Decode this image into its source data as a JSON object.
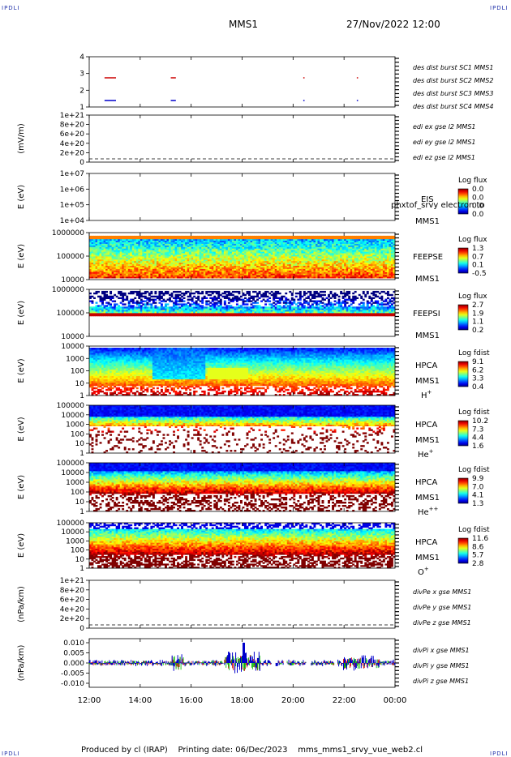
{
  "header": {
    "corner_label": "IPDLI",
    "spacecraft": "MMS1",
    "date": "27/Nov/2022 12:00"
  },
  "footer": {
    "produced_by": "Produced by cl (IRAP)",
    "printing_date": "Printing date: 06/Dec/2023",
    "script_name": "mms_mms1_srvy_vue_web2.cl"
  },
  "chart_data": {
    "type": "multi-panel",
    "x_axis": {
      "ticks": [
        "12:00",
        "14:00",
        "16:00",
        "18:00",
        "20:00",
        "22:00",
        "00:00"
      ],
      "range": [
        "12:00",
        "00:00"
      ]
    },
    "panels": [
      {
        "id": "burst",
        "type": "timeline",
        "ylabel": "",
        "yticks": [
          "1",
          "2",
          "3",
          "4"
        ],
        "legend": [
          {
            "text": "des dist burst SC1 MMS1",
            "color": "#0000cc"
          },
          {
            "text": "des dist burst SC2 MMS2",
            "color": "#cc00cc"
          },
          {
            "text": "des dist burst SC3 MMS3",
            "color": "#cc0000"
          },
          {
            "text": "des dist burst SC4 MMS4",
            "color": "#00bb00"
          }
        ],
        "segments": [
          {
            "sc": 3,
            "t0": 0.6,
            "t1": 1.05,
            "color": "#cc0000"
          },
          {
            "sc": 3,
            "t0": 3.2,
            "t1": 3.4,
            "color": "#cc0000"
          },
          {
            "sc": 3,
            "t0": 8.4,
            "t1": 8.45,
            "color": "#cc0000"
          },
          {
            "sc": 3,
            "t0": 10.5,
            "t1": 10.55,
            "color": "#cc0000"
          },
          {
            "sc": 1,
            "t0": 0.6,
            "t1": 1.05,
            "color": "#0000cc"
          },
          {
            "sc": 1,
            "t0": 3.2,
            "t1": 3.4,
            "color": "#0000cc"
          },
          {
            "sc": 1,
            "t0": 8.4,
            "t1": 8.45,
            "color": "#0000cc"
          },
          {
            "sc": 1,
            "t0": 10.5,
            "t1": 10.55,
            "color": "#0000cc"
          }
        ]
      },
      {
        "id": "edi",
        "type": "line",
        "ylabel": "(mV/m)",
        "yticks": [
          "0",
          "2e+20",
          "4e+20",
          "6e+20",
          "8e+20",
          "1e+21"
        ],
        "legend": [
          {
            "text": "edi ex gse l2 MMS1",
            "color": "#cc0000"
          },
          {
            "text": "edi ey gse l2 MMS1",
            "color": "#00bb00"
          },
          {
            "text": "edi ez gse l2 MMS1",
            "color": "#0000cc"
          }
        ]
      },
      {
        "id": "eis",
        "type": "spectrogram",
        "ylabel": "E (eV)",
        "yticks": [
          "1e+04",
          "1e+05",
          "1e+06",
          "1e+07"
        ],
        "instrument": "EIS",
        "instrument_overlay": "phxtof_srvy electron to",
        "craft": "MMS1",
        "cbar_title": "Log flux",
        "cbar_ticks": [
          "0.0",
          "0.0",
          "0.0",
          "0.0"
        ]
      },
      {
        "id": "feepse",
        "type": "spectrogram",
        "ylabel": "E (eV)",
        "yticks": [
          "10000",
          "100000",
          "1000000"
        ],
        "instrument": "FEEPSE",
        "craft": "MMS1",
        "cbar_title": "Log flux",
        "cbar_ticks": [
          "1.3",
          "0.7",
          "0.1",
          "-0.5"
        ]
      },
      {
        "id": "feepsi",
        "type": "spectrogram",
        "ylabel": "E (eV)",
        "yticks": [
          "10000",
          "100000",
          "1000000"
        ],
        "instrument": "FEEPSI",
        "craft": "MMS1",
        "cbar_title": "Log flux",
        "cbar_ticks": [
          "2.7",
          "1.9",
          "1.1",
          "0.2"
        ]
      },
      {
        "id": "hpca_h",
        "type": "spectrogram",
        "ylabel": "E (eV)",
        "yticks": [
          "1",
          "10",
          "100",
          "1000",
          "10000"
        ],
        "instrument": "HPCA",
        "craft": "MMS1",
        "species": "H",
        "charge": "+",
        "cbar_title": "Log fdist",
        "cbar_ticks": [
          "9.1",
          "6.2",
          "3.3",
          "0.4"
        ]
      },
      {
        "id": "hpca_he1",
        "type": "spectrogram",
        "ylabel": "E (eV)",
        "yticks": [
          "1",
          "10",
          "100",
          "1000",
          "10000",
          "100000"
        ],
        "instrument": "HPCA",
        "craft": "MMS1",
        "species": "He",
        "charge": "+",
        "cbar_title": "Log fdist",
        "cbar_ticks": [
          "10.2",
          "7.3",
          "4.4",
          "1.6"
        ]
      },
      {
        "id": "hpca_he2",
        "type": "spectrogram",
        "ylabel": "E (eV)",
        "yticks": [
          "1",
          "10",
          "100",
          "1000",
          "10000",
          "100000"
        ],
        "instrument": "HPCA",
        "craft": "MMS1",
        "species": "He",
        "charge": "++",
        "cbar_title": "Log fdist",
        "cbar_ticks": [
          "9.9",
          "7.0",
          "4.1",
          "1.3"
        ]
      },
      {
        "id": "hpca_o",
        "type": "spectrogram",
        "ylabel": "E (eV)",
        "yticks": [
          "1",
          "10",
          "100",
          "1000",
          "10000",
          "100000"
        ],
        "instrument": "HPCA",
        "craft": "MMS1",
        "species": "O",
        "charge": "+",
        "cbar_title": "Log fdist",
        "cbar_ticks": [
          "11.6",
          "8.6",
          "5.7",
          "2.8"
        ]
      },
      {
        "id": "divpe",
        "type": "line",
        "ylabel": "(nPa/km)",
        "yticks": [
          "0",
          "2e+20",
          "4e+20",
          "6e+20",
          "8e+20",
          "1e+21"
        ],
        "legend": [
          {
            "text": "divPe x gse MMS1",
            "color": "#cc0000"
          },
          {
            "text": "divPe y gse MMS1",
            "color": "#00bb00"
          },
          {
            "text": "divPe z gse MMS1",
            "color": "#0000cc"
          }
        ]
      },
      {
        "id": "divpi",
        "type": "line",
        "ylabel": "(nPa/km)",
        "yticks": [
          "-0.010",
          "-0.005",
          "0.000",
          "0.005",
          "0.010"
        ],
        "ylim": [
          -0.012,
          0.012
        ],
        "legend": [
          {
            "text": "divPi x gse MMS1",
            "color": "#cc0000"
          },
          {
            "text": "divPi y gse MMS1",
            "color": "#00bb00"
          },
          {
            "text": "divPi z gse MMS1",
            "color": "#0000cc"
          }
        ]
      }
    ]
  }
}
